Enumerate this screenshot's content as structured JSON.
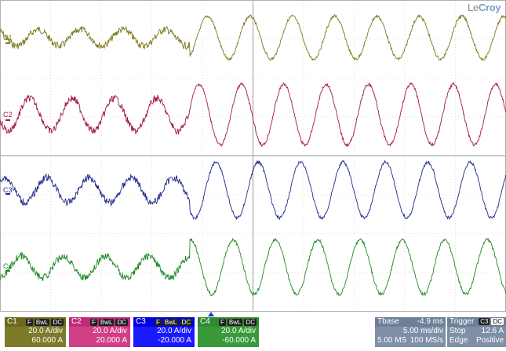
{
  "brand": {
    "prefix": "Le",
    "suffix": "Croy"
  },
  "channels": [
    {
      "id": "C1",
      "label": "C1",
      "color": "#7e7a1b",
      "box_bg": "#7d7a2a",
      "badges": [
        "F",
        "BwL",
        "DC"
      ],
      "scale": "20.0 A/div",
      "offset": "60.000 A",
      "amp_before": 0.21,
      "amp_after": 0.55
    },
    {
      "id": "C2",
      "label": "C2",
      "color": "#a3144d",
      "box_bg": "#d13f86",
      "badges": [
        "F",
        "BwL",
        "DC"
      ],
      "scale": "20.0 A/div",
      "offset": "20.000 A",
      "amp_before": 0.42,
      "amp_after": 0.78
    },
    {
      "id": "C3",
      "label": "C3",
      "color": "#1e2a8c",
      "box_bg": "#1a1aff",
      "badges": [
        "F",
        "BwL",
        "DC"
      ],
      "scale": "20.0 A/div",
      "offset": "-20.000 A",
      "amp_before": 0.32,
      "amp_after": 0.72
    },
    {
      "id": "C4",
      "label": "C4",
      "color": "#1f8a26",
      "box_bg": "#3a9a3a",
      "badges": [
        "F",
        "BwL",
        "DC"
      ],
      "scale": "20.0 A/div",
      "offset": "-60.000 A",
      "amp_before": 0.28,
      "amp_after": 0.7
    }
  ],
  "timebase": {
    "label": "Tbase",
    "delay": "-4.9 ms",
    "scale": "5.00 ms/div",
    "samples": "5.00 MS",
    "rate": "100 MS/s"
  },
  "trigger": {
    "label": "Trigger",
    "source_badge": "C3",
    "coupling_badge": "DC",
    "mode": "Stop",
    "level": "12.6 A",
    "type": "Edge",
    "slope": "Positive"
  }
}
